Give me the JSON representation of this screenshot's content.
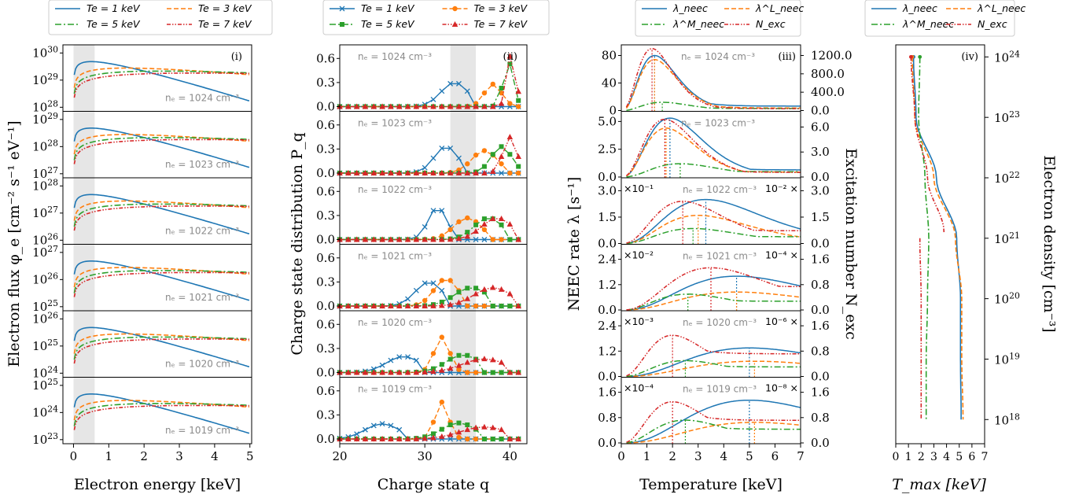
{
  "colors": {
    "c1": "#1f77b4",
    "c2": "#ff7f0e",
    "c3": "#2ca02c",
    "c4": "#d62728",
    "shade": "#e6e6e6",
    "note": "#8a8a8a"
  },
  "chart_data": [
    {
      "type": "line",
      "panel_tag": "(i)",
      "log_y": true,
      "xlabel": "Electron energy [keV]",
      "ylabel": "Electron flux φ_e [cm⁻² s⁻¹ eV⁻¹]",
      "xlim": [
        -0.3,
        5.05
      ],
      "xticks": [
        "0",
        "1",
        "2",
        "3",
        "4",
        "5"
      ],
      "shaded_x_range": [
        0,
        0.6
      ],
      "legend": {
        "placement": "top",
        "labels": [
          "Te = 1 keV",
          "Te = 3 keV",
          "Te = 5 keV",
          "Te = 7 keV"
        ]
      },
      "subplots": [
        {
          "density": "n_e = 10^24 cm^-3",
          "ytick_exp": [
            "28",
            "29",
            "30"
          ],
          "ref_exp": 24
        },
        {
          "density": "n_e = 10^23 cm^-3",
          "ytick_exp": [
            "27",
            "28",
            "29"
          ],
          "ref_exp": 23
        },
        {
          "density": "n_e = 10^22 cm^-3",
          "ytick_exp": [
            "26",
            "27",
            "28"
          ],
          "ref_exp": 22
        },
        {
          "density": "n_e = 10^21 cm^-3",
          "ytick_exp": [
            "25",
            "26",
            "27"
          ],
          "ref_exp": 21
        },
        {
          "density": "n_e = 10^20 cm^-3",
          "ytick_exp": [
            "24",
            "25",
            "26"
          ],
          "ref_exp": 20
        },
        {
          "density": "n_e = 10^19 cm^-3",
          "ytick_exp": [
            "23",
            "24",
            "25"
          ],
          "ref_exp": 19
        }
      ]
    },
    {
      "type": "line",
      "panel_tag": "(ii)",
      "xlabel": "Charge state q",
      "ylabel": "Charge state distribution P_q",
      "xlim": [
        20,
        42
      ],
      "xticks": [
        "20",
        "30",
        "40"
      ],
      "yticks": [
        "0.0",
        "0.3",
        "0.6"
      ],
      "ylim": [
        0,
        0.75
      ],
      "shaded_x_range": [
        33,
        36
      ],
      "legend": {
        "placement": "top",
        "labels": [
          "Te = 1 keV",
          "Te = 3 keV",
          "Te = 5 keV",
          "Te = 7 keV"
        ]
      },
      "subplots": [
        {
          "density": "n_e = 10^24 cm^-3",
          "peaks": [
            [
              33.5,
              0.3,
              1.6
            ],
            [
              38,
              0.28,
              1.0
            ],
            [
              39.8,
              0.56,
              0.6
            ],
            [
              40.2,
              0.68,
              0.5
            ]
          ]
        },
        {
          "density": "n_e = 10^23 cm^-3",
          "peaks": [
            [
              32.5,
              0.33,
              1.4
            ],
            [
              37,
              0.28,
              1.5
            ],
            [
              39,
              0.33,
              1.2
            ],
            [
              40,
              0.45,
              0.8
            ]
          ]
        },
        {
          "density": "n_e = 10^22 cm^-3",
          "peaks": [
            [
              31.5,
              0.4,
              1.1
            ],
            [
              35,
              0.27,
              1.6
            ],
            [
              37.5,
              0.27,
              1.7
            ],
            [
              38.5,
              0.27,
              1.8
            ]
          ]
        },
        {
          "density": "n_e = 10^21 cm^-3",
          "peaks": [
            [
              30.5,
              0.3,
              1.6
            ],
            [
              32.5,
              0.34,
              1.4
            ],
            [
              35.5,
              0.23,
              2.0
            ],
            [
              38,
              0.23,
              2.2
            ]
          ]
        },
        {
          "density": "n_e = 10^20 cm^-3",
          "peaks": [
            [
              27.5,
              0.2,
              2.0
            ],
            [
              32,
              0.44,
              0.9
            ],
            [
              34.5,
              0.22,
              2.0
            ],
            [
              37,
              0.17,
              2.6
            ]
          ]
        },
        {
          "density": "n_e = 10^19 cm^-3",
          "peaks": [
            [
              25,
              0.19,
              2.0
            ],
            [
              32,
              0.46,
              0.8
            ],
            [
              34,
              0.2,
              2.0
            ],
            [
              37,
              0.15,
              2.8
            ]
          ]
        }
      ]
    },
    {
      "type": "line",
      "panel_tag": "(iii)",
      "xlabel": "Temperature [keV]",
      "ylabel": "NEEC rate λ [s⁻¹]",
      "ylabel_right": "Excitation number N_exc",
      "xlim": [
        0,
        7
      ],
      "xticks": [
        "0",
        "1",
        "2",
        "3",
        "4",
        "5",
        "6",
        "7"
      ],
      "legend": {
        "placement": "top",
        "labels": [
          "λ_neec",
          "λ^L_neec",
          "λ^M_neec",
          "N_exc"
        ]
      },
      "subplots": [
        {
          "density": "n_e = 10^24 cm^-3",
          "yticks": [
            "0",
            "40",
            "80"
          ],
          "ymax": 92,
          "rticks": [
            "0.0",
            "400.0",
            "800.0",
            "1200.0"
          ],
          "rmax": 1380,
          "lmult": "",
          "rmult": "",
          "peaks": [
            1.3,
            1.3,
            1.6,
            1.2
          ],
          "amps": [
            80,
            74,
            12,
            90
          ],
          "tails": [
            0.08,
            0.05,
            0.25,
            0.03
          ]
        },
        {
          "density": "n_e = 10^23 cm^-3",
          "yticks": [
            "0.0",
            "2.5",
            "5.0"
          ],
          "ymax": 5.7,
          "rticks": [
            "0.0",
            "3.0",
            "6.0"
          ],
          "rmax": 7.6,
          "lmult": "",
          "rmult": "",
          "peaks": [
            1.9,
            1.75,
            2.3,
            1.7
          ],
          "amps": [
            5.3,
            4.4,
            1.2,
            5.2
          ],
          "tails": [
            0.12,
            0.1,
            0.4,
            0.08
          ]
        },
        {
          "density": "n_e = 10^22 cm^-3",
          "yticks": [
            "0.0",
            "1.5",
            "3.0"
          ],
          "ymax": 3.6,
          "rticks": [
            "0.0",
            "1.5",
            "3.0"
          ],
          "rmax": 3.6,
          "lmult": "×10⁻¹",
          "rmult": "10⁻² ×",
          "peaks": [
            3.3,
            3.0,
            2.8,
            2.4
          ],
          "amps": [
            2.5,
            1.6,
            0.85,
            2.4
          ],
          "tails": [
            0.25,
            0.22,
            0.45,
            0.3
          ]
        },
        {
          "density": "n_e = 10^21 cm^-3",
          "yticks": [
            "0.0",
            "1.2",
            "2.4"
          ],
          "ymax": 3.0,
          "rticks": [
            "0.0",
            "0.8",
            "1.6"
          ],
          "rmax": 2.0,
          "lmult": "×10⁻²",
          "rmult": "10⁻⁴ ×",
          "peaks": [
            4.5,
            4.5,
            2.6,
            3.5
          ],
          "amps": [
            1.6,
            0.85,
            0.75,
            2.0
          ],
          "tails": [
            0.45,
            0.4,
            0.55,
            0.55
          ]
        },
        {
          "density": "n_e = 10^20 cm^-3",
          "yticks": [
            "0.0",
            "1.2",
            "2.4"
          ],
          "ymax": 3.0,
          "rticks": [
            "0.0",
            "0.8",
            "1.6"
          ],
          "rmax": 2.0,
          "lmult": "×10⁻³",
          "rmult": "10⁻⁶ ×",
          "peaks": [
            5.0,
            5.2,
            2.5,
            2.0
          ],
          "amps": [
            1.35,
            0.72,
            0.75,
            1.95
          ],
          "tails": [
            0.55,
            0.45,
            0.6,
            0.55
          ]
        },
        {
          "density": "n_e = 10^19 cm^-3",
          "yticks": [
            "0.0",
            "0.8",
            "1.6"
          ],
          "ymax": 2.0,
          "rticks": [
            "0.0",
            "0.8",
            "1.6"
          ],
          "rmax": 2.0,
          "lmult": "×10⁻⁴",
          "rmult": "10⁻⁸ ×",
          "peaks": [
            5.0,
            5.2,
            2.5,
            2.0
          ],
          "amps": [
            1.35,
            0.65,
            0.72,
            1.3
          ],
          "tails": [
            0.55,
            0.45,
            0.6,
            0.55
          ]
        }
      ]
    },
    {
      "type": "line",
      "panel_tag": "(iv)",
      "xlabel": "T_max [keV]",
      "ylabel": "Electron density [cm⁻³]",
      "xlim": [
        0,
        7
      ],
      "xticks": [
        "0",
        "1",
        "2",
        "3",
        "4",
        "5",
        "6",
        "7"
      ],
      "ylim_log10": [
        17.6,
        24.2
      ],
      "yticks_exp": [
        "18",
        "19",
        "20",
        "21",
        "22",
        "23",
        "24"
      ],
      "legend": {
        "placement": "top",
        "labels": [
          "λ_neec",
          "λ^L_neec",
          "λ^M_neec",
          "N_exc"
        ]
      },
      "series": [
        {
          "name": "λ_neec",
          "points": [
            [
              1.4,
              24
            ],
            [
              1.6,
              23
            ],
            [
              3.2,
              22
            ],
            [
              4.8,
              21
            ],
            [
              5.1,
              20
            ],
            [
              5.1,
              19
            ],
            [
              5.15,
              18
            ]
          ]
        },
        {
          "name": "λ^L_neec",
          "points": [
            [
              1.3,
              24
            ],
            [
              1.5,
              23
            ],
            [
              3.0,
              22
            ],
            [
              4.7,
              21
            ],
            [
              5.2,
              20
            ],
            [
              5.2,
              19
            ],
            [
              5.3,
              18
            ]
          ]
        },
        {
          "name": "λ^M_neec",
          "points": [
            [
              1.9,
              24
            ],
            [
              1.8,
              23
            ],
            [
              2.3,
              22
            ],
            [
              2.6,
              21
            ],
            [
              2.5,
              20
            ],
            [
              2.4,
              19
            ],
            [
              2.4,
              18
            ]
          ]
        },
        {
          "name": "N_exc",
          "points": [
            [
              1.2,
              24
            ],
            [
              1.5,
              23
            ],
            [
              2.5,
              22
            ],
            [
              3.8,
              21.1
            ]
          ],
          "points2": [
            [
              1.9,
              21
            ],
            [
              2.0,
              20
            ],
            [
              2.0,
              19
            ],
            [
              2.0,
              18
            ]
          ]
        }
      ]
    }
  ]
}
